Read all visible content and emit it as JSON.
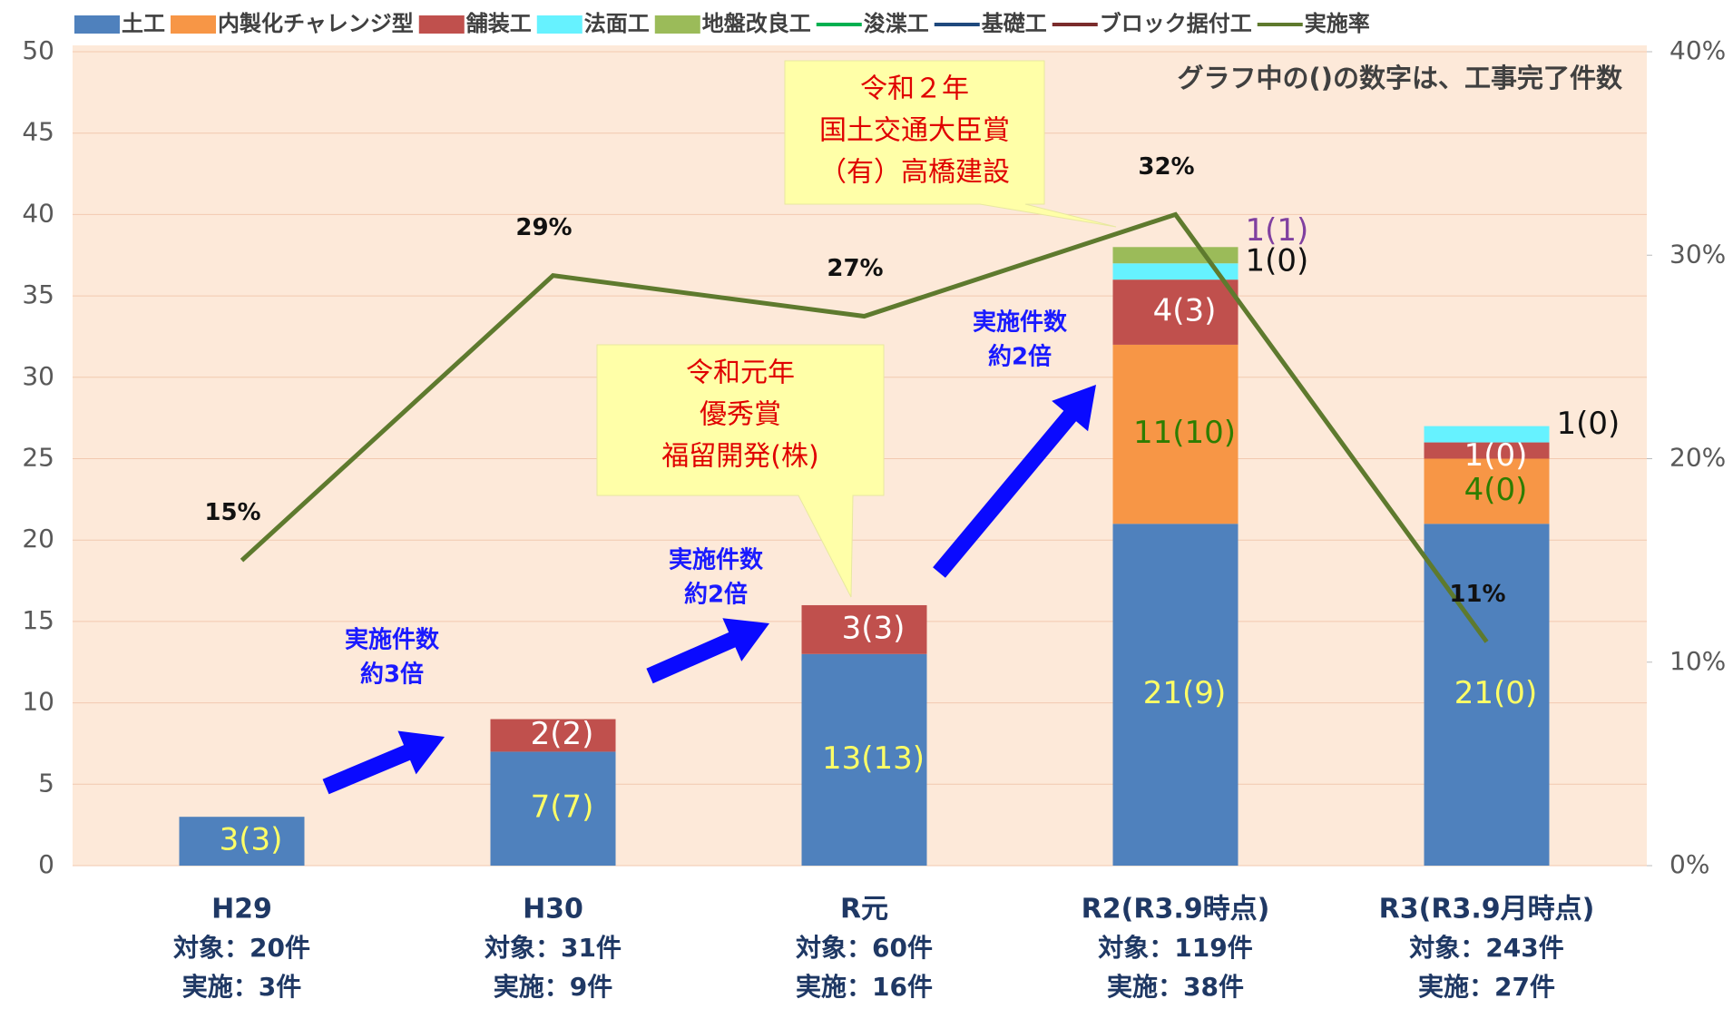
{
  "chart_data": {
    "type": "bar",
    "stacked": true,
    "categories": [
      "H29",
      "H30",
      "R元",
      "R2(R3.9時点)",
      "R3(R3.9月時点)"
    ],
    "category_targets": [
      "対象：20件",
      "対象：31件",
      "対象：60件",
      "対象：119件",
      "対象：243件"
    ],
    "category_implemented": [
      "実施：3件",
      "実施：9件",
      "実施：16件",
      "実施：38件",
      "実施：27件"
    ],
    "ylim": [
      0,
      50
    ],
    "yticks": [
      0,
      5,
      10,
      15,
      20,
      25,
      30,
      35,
      40,
      45,
      50
    ],
    "y2lim": [
      0,
      40
    ],
    "y2ticks": [
      {
        "value": 0,
        "label": "0%"
      },
      {
        "value": 10,
        "label": "10%"
      },
      {
        "value": 20,
        "label": "20%"
      },
      {
        "value": 30,
        "label": "30%"
      },
      {
        "value": 40,
        "label": "40%"
      }
    ],
    "grid": true,
    "legend": "top",
    "series": [
      {
        "name": "土工",
        "color": "#4f81bd",
        "label_color": "#ffff66",
        "values": [
          3,
          7,
          13,
          21,
          21
        ],
        "value_labels": [
          "3(3)",
          "7(7)",
          "13(13)",
          "21(9)",
          "21(0)"
        ]
      },
      {
        "name": "内製化チャレンジ型",
        "color": "#f79646",
        "label_color": "#2e7d00",
        "values": [
          null,
          null,
          null,
          11,
          4
        ],
        "value_labels": [
          null,
          null,
          null,
          "11(10)",
          "4(0)"
        ]
      },
      {
        "name": "舗装工",
        "color": "#c0504d",
        "label_color": "#ffffff",
        "values": [
          null,
          2,
          3,
          4,
          1
        ],
        "value_labels": [
          null,
          "2(2)",
          "3(3)",
          "4(3)",
          "1(0)"
        ]
      },
      {
        "name": "法面工",
        "color": "#66f2ff",
        "label_color": "#111111",
        "label_position": "outside",
        "values": [
          null,
          null,
          null,
          1,
          1
        ],
        "value_labels": [
          null,
          null,
          null,
          "1(0)",
          "1(0)"
        ]
      },
      {
        "name": "地盤改良工",
        "color": "#9bbb59",
        "label_color": "#8040a0",
        "label_position": "outside",
        "values": [
          null,
          null,
          null,
          1,
          null
        ],
        "value_labels": [
          null,
          null,
          null,
          "1(1)",
          null
        ]
      },
      {
        "name": "浚渫工",
        "color": "#00b050",
        "kind": "line",
        "values": [
          null,
          null,
          null,
          null,
          null
        ]
      },
      {
        "name": "基礎工",
        "color": "#1f497d",
        "kind": "line",
        "values": [
          null,
          null,
          null,
          null,
          null
        ]
      },
      {
        "name": "ブロック据付工",
        "color": "#7b2c2c",
        "kind": "line",
        "values": [
          null,
          null,
          null,
          null,
          null
        ]
      },
      {
        "name": "実施率",
        "color": "#5e7a2e",
        "kind": "line",
        "axis": "y2",
        "values": [
          15,
          29,
          27,
          32,
          11
        ],
        "value_labels": [
          "15%",
          "29%",
          "27%",
          "32%",
          "11%"
        ]
      }
    ],
    "note": "グラフ中の()の数字は、工事完了件数",
    "callouts": [
      {
        "lines": [
          "令和２年",
          "国土交通大臣賞",
          "（有）高橋建設"
        ]
      },
      {
        "lines": [
          "令和元年",
          "優秀賞",
          "福留開発(株)"
        ]
      }
    ],
    "arrow_labels": [
      {
        "lines": [
          "実施件数",
          "約3倍"
        ]
      },
      {
        "lines": [
          "実施件数",
          "約2倍"
        ]
      },
      {
        "lines": [
          "実施件数",
          "約2倍"
        ]
      }
    ]
  }
}
